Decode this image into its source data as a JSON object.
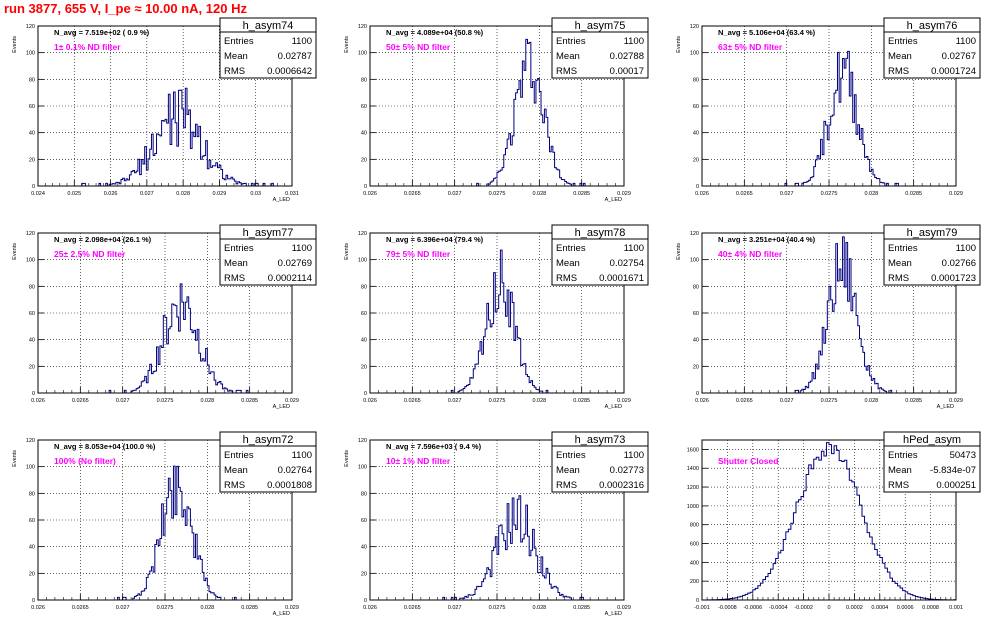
{
  "page": {
    "title": "run 3877,   655 V, I_pe ≈ 10.00 nA, 120 Hz"
  },
  "colors": {
    "histogram_line": "#000080",
    "annotation": "#ff00ff",
    "title": "#ff0000",
    "grid": "#000000",
    "frame": "#000000"
  },
  "chart_data": [
    {
      "type": "histogram",
      "name": "h_asym74",
      "ylabel": "Events",
      "xlabel": "A_LED",
      "xlim": [
        0.024,
        0.031
      ],
      "ylim": [
        0,
        120
      ],
      "xticks": [
        "0.024",
        "0.025",
        "0.026",
        "0.027",
        "0.028",
        "0.029",
        "0.03",
        "0.031"
      ],
      "yticks": [
        "0",
        "20",
        "40",
        "60",
        "80",
        "100",
        "120"
      ],
      "nbins": 150,
      "stats": {
        "Entries": "1100",
        "Mean": "0.02787",
        "RMS": "0.0006642"
      },
      "navg": "N_avg = 7.519e+02 ( 0.9 %)",
      "filter": "1± 0.1% ND filter",
      "gen": {
        "mean": 0.02787,
        "rms": 0.0006642,
        "peak": 53,
        "noise": 0.16,
        "seed": 74
      },
      "grid": true
    },
    {
      "type": "histogram",
      "name": "h_asym75",
      "ylabel": "Events",
      "xlabel": "A_LED",
      "xlim": [
        0.026,
        0.029
      ],
      "ylim": [
        0,
        120
      ],
      "xticks": [
        "0.026",
        "0.0265",
        "0.027",
        "0.0275",
        "0.028",
        "0.0285",
        "0.029"
      ],
      "yticks": [
        "0",
        "20",
        "40",
        "60",
        "80",
        "100",
        "120"
      ],
      "nbins": 150,
      "stats": {
        "Entries": "1100",
        "Mean": "0.02788",
        "RMS": "0.00017"
      },
      "navg": "N_avg = 4.089e+04 (50.8 %)",
      "filter": "50± 5% ND filter",
      "gen": {
        "mean": 0.02788,
        "rms": 0.00017,
        "peak": 86,
        "noise": 0.1,
        "seed": 75
      },
      "grid": true
    },
    {
      "type": "histogram",
      "name": "h_asym76",
      "ylabel": "Events",
      "xlabel": "",
      "xlim": [
        0.026,
        0.029
      ],
      "ylim": [
        0,
        120
      ],
      "xticks": [
        "0.026",
        "0.0265",
        "0.027",
        "0.0275",
        "0.028",
        "0.0285",
        "0.029"
      ],
      "yticks": [
        "0",
        "20",
        "40",
        "60",
        "80",
        "100",
        "120"
      ],
      "nbins": 150,
      "stats": {
        "Entries": "1100",
        "Mean": "0.02767",
        "RMS": "0.0001724"
      },
      "navg": "N_avg = 5.106e+04 (63.4 %)",
      "filter": "63± 5% ND filter",
      "gen": {
        "mean": 0.02767,
        "rms": 0.0001724,
        "peak": 85,
        "noise": 0.1,
        "seed": 76
      },
      "grid": true
    },
    {
      "type": "histogram",
      "name": "h_asym77",
      "ylabel": "Events",
      "xlabel": "A_LED",
      "xlim": [
        0.026,
        0.029
      ],
      "ylim": [
        0,
        120
      ],
      "xticks": [
        "0.026",
        "0.0265",
        "0.027",
        "0.0275",
        "0.028",
        "0.0285",
        "0.029"
      ],
      "yticks": [
        "0",
        "20",
        "40",
        "60",
        "80",
        "100",
        "120"
      ],
      "nbins": 150,
      "stats": {
        "Entries": "1100",
        "Mean": "0.02769",
        "RMS": "0.0002114"
      },
      "navg": "N_avg = 2.098e+04 (26.1 %)",
      "filter": "25± 2.5% ND filter",
      "gen": {
        "mean": 0.02769,
        "rms": 0.0002114,
        "peak": 68,
        "noise": 0.12,
        "seed": 77
      },
      "grid": true
    },
    {
      "type": "histogram",
      "name": "h_asym78",
      "ylabel": "Events",
      "xlabel": "A_LED",
      "xlim": [
        0.026,
        0.029
      ],
      "ylim": [
        0,
        120
      ],
      "xticks": [
        "0.026",
        "0.0265",
        "0.027",
        "0.0275",
        "0.028",
        "0.0285",
        "0.029"
      ],
      "yticks": [
        "0",
        "20",
        "40",
        "60",
        "80",
        "100",
        "120"
      ],
      "nbins": 150,
      "stats": {
        "Entries": "1100",
        "Mean": "0.02754",
        "RMS": "0.0001671"
      },
      "navg": "N_avg = 6.396e+04 (79.4 %)",
      "filter": "79± 5% ND filter",
      "gen": {
        "mean": 0.02754,
        "rms": 0.0001671,
        "peak": 84,
        "noise": 0.1,
        "seed": 78
      },
      "grid": true
    },
    {
      "type": "histogram",
      "name": "h_asym79",
      "ylabel": "Events",
      "xlabel": "A_LED",
      "xlim": [
        0.026,
        0.029
      ],
      "ylim": [
        0,
        120
      ],
      "xticks": [
        "0.026",
        "0.0265",
        "0.027",
        "0.0275",
        "0.028",
        "0.0285",
        "0.029"
      ],
      "yticks": [
        "0",
        "20",
        "40",
        "60",
        "80",
        "100",
        "120"
      ],
      "nbins": 150,
      "stats": {
        "Entries": "1100",
        "Mean": "0.02766",
        "RMS": "0.0001723"
      },
      "navg": "N_avg = 3.251e+04 (40.4 %)",
      "filter": "40± 4% ND filter",
      "gen": {
        "mean": 0.02766,
        "rms": 0.0001723,
        "peak": 94,
        "noise": 0.1,
        "seed": 79
      },
      "grid": true
    },
    {
      "type": "histogram",
      "name": "h_asym72",
      "ylabel": "Events",
      "xlabel": "A_LED",
      "xlim": [
        0.026,
        0.029
      ],
      "ylim": [
        0,
        120
      ],
      "xticks": [
        "0.026",
        "0.0265",
        "0.027",
        "0.0275",
        "0.028",
        "0.0285",
        "0.029"
      ],
      "yticks": [
        "0",
        "20",
        "40",
        "60",
        "80",
        "100",
        "120"
      ],
      "nbins": 150,
      "stats": {
        "Entries": "1100",
        "Mean": "0.02764",
        "RMS": "0.0001808"
      },
      "navg": "N_avg = 8.053e+04 (100.0 %)",
      "filter": "100% (No filter)",
      "gen": {
        "mean": 0.02764,
        "rms": 0.0001808,
        "peak": 87,
        "noise": 0.1,
        "seed": 72
      },
      "grid": true
    },
    {
      "type": "histogram",
      "name": "h_asym73",
      "ylabel": "Events",
      "xlabel": "A_LED",
      "xlim": [
        0.026,
        0.029
      ],
      "ylim": [
        0,
        120
      ],
      "xticks": [
        "0.026",
        "0.0265",
        "0.027",
        "0.0275",
        "0.028",
        "0.0285",
        "0.029"
      ],
      "yticks": [
        "0",
        "20",
        "40",
        "60",
        "80",
        "100",
        "120"
      ],
      "nbins": 150,
      "stats": {
        "Entries": "1100",
        "Mean": "0.02773",
        "RMS": "0.0002316"
      },
      "navg": "N_avg = 7.596e+03 ( 9.4 %)",
      "filter": "10± 1% ND filter",
      "gen": {
        "mean": 0.02773,
        "rms": 0.0002316,
        "peak": 60,
        "noise": 0.12,
        "seed": 73
      },
      "grid": true
    },
    {
      "type": "histogram",
      "name": "hPed_asym",
      "ylabel": "",
      "xlabel": "",
      "xlim": [
        -0.001,
        0.001
      ],
      "ylim": [
        0,
        1700
      ],
      "xticks": [
        "-0.001",
        "-0.0008",
        "-0.0006",
        "-0.0004",
        "-0.0002",
        "0",
        "0.0002",
        "0.0004",
        "0.0006",
        "0.0008",
        "0.001"
      ],
      "ytickvals": [
        0,
        200,
        400,
        600,
        800,
        1000,
        1200,
        1400,
        1600
      ],
      "yticks": [
        "0",
        "200",
        "400",
        "600",
        "800",
        "1000",
        "1200",
        "1400",
        "1600"
      ],
      "nbins": 100,
      "stats": {
        "Entries": "50473",
        "Mean": "-5.834e-07",
        "RMS": "0.000251"
      },
      "navg": "",
      "filter": "Shutter Closed",
      "gen": {
        "mean": -6e-07,
        "rms": 0.000251,
        "peak": 1630,
        "noise": 0.02,
        "seed": 99
      },
      "grid": true
    }
  ]
}
